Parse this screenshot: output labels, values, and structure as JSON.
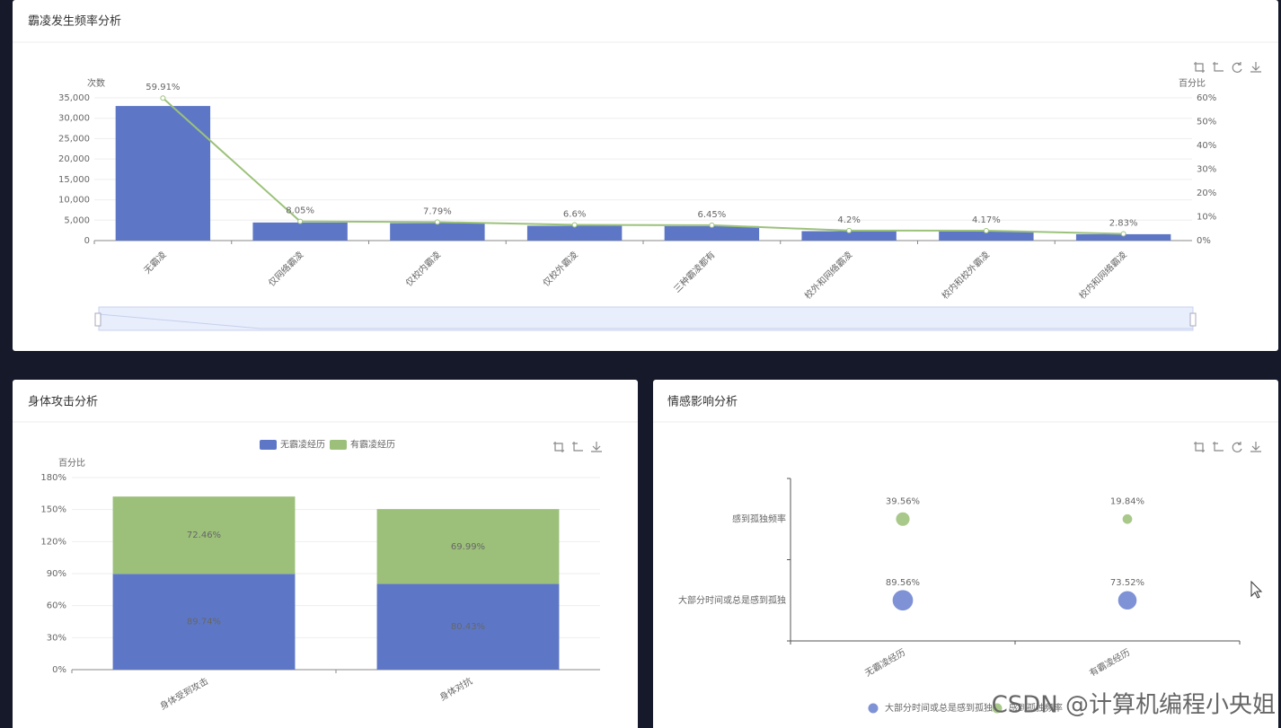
{
  "chart_data": [
    {
      "type": "bar-line",
      "title": "霸凌发生频率分析",
      "y_name": "次数",
      "y2_name": "百分比",
      "categories": [
        "无霸凌",
        "仅网络霸凌",
        "仅校内霸凌",
        "仅校外霸凌",
        "三种霸凌都有",
        "校外和网络霸凌",
        "校内和校外霸凌",
        "校内和网络霸凌"
      ],
      "series": [
        {
          "type": "bar",
          "color": "#5d77c6",
          "values": [
            33000,
            4430,
            4290,
            3640,
            3550,
            2310,
            2300,
            1560
          ]
        },
        {
          "type": "line",
          "axis": "y2",
          "color": "#9cc27a",
          "values": [
            59.91,
            8.05,
            7.79,
            6.6,
            6.45,
            4.2,
            4.17,
            2.83
          ],
          "value_labels": [
            "59.91%",
            "8.05%",
            "7.79%",
            "6.6%",
            "6.45%",
            "4.2%",
            "4.17%",
            "2.83%"
          ]
        }
      ],
      "ylim": [
        0,
        35000
      ],
      "yticks": [
        0,
        {
          "value": 5000,
          "label": "5,000"
        },
        {
          "value": 10000,
          "label": "10,000"
        },
        {
          "value": 15000,
          "label": "15,000"
        },
        {
          "value": 20000,
          "label": "20,000"
        },
        {
          "value": 25000,
          "label": "25,000"
        },
        {
          "value": 30000,
          "label": "30,000"
        },
        {
          "value": 35000,
          "label": "35,000"
        }
      ],
      "y2lim": [
        0,
        60
      ],
      "y2ticks": [
        {
          "value": 0,
          "label": "0%"
        },
        {
          "value": 10,
          "label": "10%"
        },
        {
          "value": 20,
          "label": "20%"
        },
        {
          "value": 30,
          "label": "30%"
        },
        {
          "value": 40,
          "label": "40%"
        },
        {
          "value": 50,
          "label": "50%"
        },
        {
          "value": 60,
          "label": "60%"
        }
      ],
      "grid": true
    },
    {
      "type": "stacked-bar",
      "title": "身体攻击分析",
      "y_name": "百分比",
      "categories": [
        "身体受到攻击",
        "身体对抗"
      ],
      "series": [
        {
          "name": "无霸凌经历",
          "color": "#5d77c6",
          "values": [
            89.74,
            80.43
          ],
          "value_labels": [
            "89.74%",
            "80.43%"
          ]
        },
        {
          "name": "有霸凌经历",
          "color": "#9cc07a",
          "values": [
            72.46,
            69.99
          ],
          "value_labels": [
            "72.46%",
            "69.99%"
          ]
        }
      ],
      "ylim": [
        0,
        180
      ],
      "yticks": [
        {
          "value": 0,
          "label": "0%"
        },
        {
          "value": 30,
          "label": "30%"
        },
        {
          "value": 60,
          "label": "60%"
        },
        {
          "value": 90,
          "label": "90%"
        },
        {
          "value": 120,
          "label": "120%"
        },
        {
          "value": 150,
          "label": "150%"
        },
        {
          "value": 180,
          "label": "180%"
        }
      ],
      "grid": true
    },
    {
      "type": "bubble",
      "title": "情感影响分析",
      "x_categories": [
        "无霸凌经历",
        "有霸凌经历"
      ],
      "y_categories": [
        "大部分时间或总是感到孤独",
        "感到孤独频率"
      ],
      "series": [
        {
          "name": "大部分时间或总是感到孤独",
          "color": "#7f92d6",
          "values": [
            89.56,
            73.52
          ],
          "value_labels": [
            "89.56%",
            "73.52%"
          ]
        },
        {
          "name": "感到孤独频率",
          "color": "#a8c98a",
          "values": [
            39.56,
            19.84
          ],
          "value_labels": [
            "39.56%",
            "19.84%"
          ]
        }
      ]
    }
  ],
  "watermark": "CSDN @计算机编程小央姐"
}
